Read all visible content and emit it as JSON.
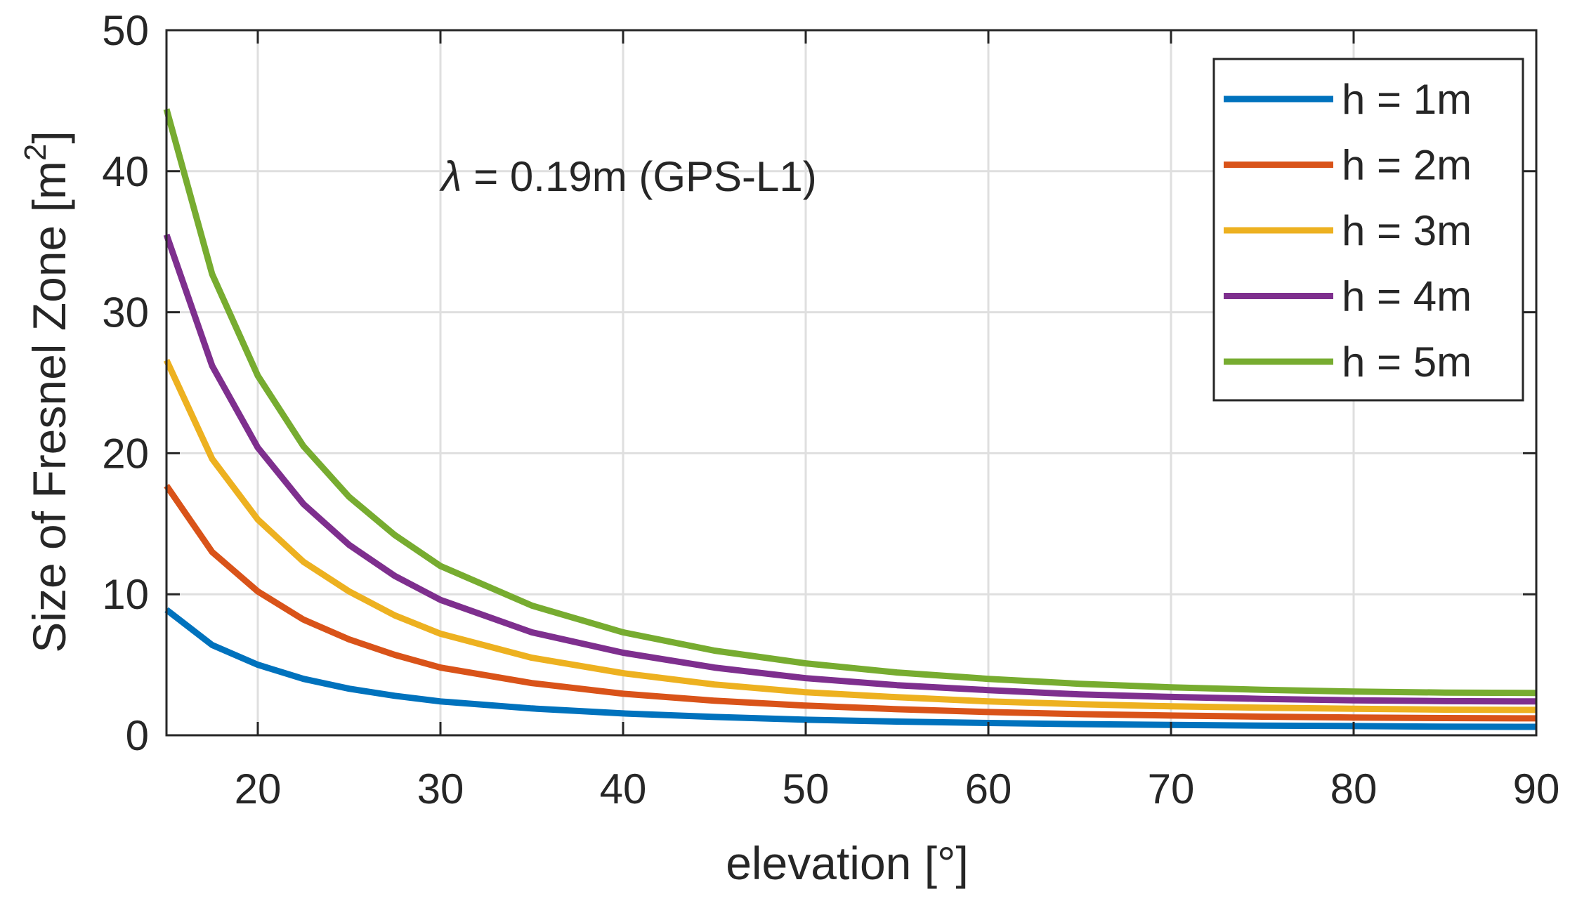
{
  "chart_data": {
    "type": "line",
    "xlabel": "elevation [°]",
    "ylabel_main": "Size of Fresnel Zone [m",
    "ylabel_sup": "2",
    "ylabel_end": "]",
    "xlim": [
      15,
      90
    ],
    "ylim": [
      0,
      50
    ],
    "xticks": [
      20,
      30,
      40,
      50,
      60,
      70,
      80,
      90
    ],
    "yticks": [
      0,
      10,
      20,
      30,
      40,
      50
    ],
    "grid": true,
    "legend_position": "top-right",
    "annotation": {
      "symbol": "λ",
      "text": " = 0.19m (GPS-L1)"
    },
    "x": [
      15,
      17.5,
      20,
      22.5,
      25,
      27.5,
      30,
      35,
      40,
      45,
      50,
      55,
      60,
      65,
      70,
      75,
      80,
      85,
      90
    ],
    "series": [
      {
        "name": "h = 1m",
        "color": "#0072bd",
        "values": [
          8.9,
          6.4,
          5.0,
          4.0,
          3.3,
          2.8,
          2.4,
          1.9,
          1.55,
          1.3,
          1.1,
          0.97,
          0.87,
          0.79,
          0.73,
          0.68,
          0.65,
          0.61,
          0.6
        ]
      },
      {
        "name": "h = 2m",
        "color": "#d95319",
        "values": [
          17.7,
          13.0,
          10.2,
          8.2,
          6.8,
          5.7,
          4.8,
          3.7,
          2.95,
          2.45,
          2.1,
          1.85,
          1.65,
          1.5,
          1.4,
          1.32,
          1.26,
          1.22,
          1.2
        ]
      },
      {
        "name": "h = 3m",
        "color": "#edb120",
        "values": [
          26.6,
          19.6,
          15.3,
          12.3,
          10.2,
          8.5,
          7.2,
          5.5,
          4.4,
          3.6,
          3.05,
          2.7,
          2.4,
          2.2,
          2.05,
          1.95,
          1.88,
          1.82,
          1.8
        ]
      },
      {
        "name": "h = 4m",
        "color": "#7e2f8e",
        "values": [
          35.5,
          26.2,
          20.4,
          16.4,
          13.5,
          11.3,
          9.6,
          7.3,
          5.85,
          4.8,
          4.05,
          3.55,
          3.2,
          2.9,
          2.72,
          2.58,
          2.48,
          2.42,
          2.4
        ]
      },
      {
        "name": "h = 5m",
        "color": "#77ac30",
        "values": [
          44.4,
          32.7,
          25.5,
          20.5,
          16.9,
          14.2,
          12.0,
          9.2,
          7.3,
          6.0,
          5.1,
          4.45,
          4.0,
          3.65,
          3.4,
          3.22,
          3.1,
          3.03,
          3.0
        ]
      }
    ]
  }
}
